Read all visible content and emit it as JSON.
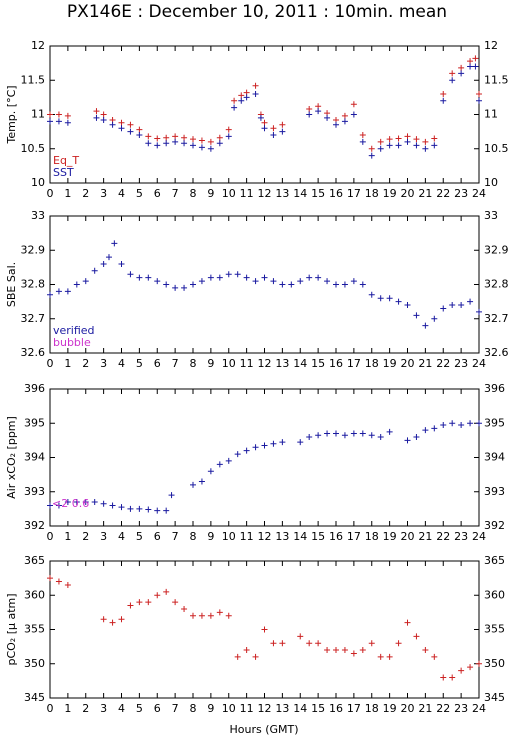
{
  "title": "PX146E : December 10, 2011 : 10min. mean",
  "xlabel": "Hours (GMT)",
  "chart_data": [
    {
      "type": "scatter",
      "ylabel": "Temp. [°C]",
      "legend": "lower left",
      "xlim": [
        0,
        24
      ],
      "xticks": [
        0,
        1,
        2,
        3,
        4,
        5,
        6,
        7,
        8,
        9,
        10,
        11,
        12,
        13,
        14,
        15,
        16,
        17,
        18,
        19,
        20,
        21,
        22,
        23,
        24
      ],
      "ylim": [
        10,
        12
      ],
      "yticks": [
        10,
        10.5,
        11,
        11.5,
        12
      ],
      "series": [
        {
          "name": "Eq_T",
          "color": "#cc2222",
          "x": [
            0,
            0.5,
            1,
            2.6,
            3,
            3.5,
            4,
            4.5,
            5,
            5.5,
            6,
            6.5,
            7,
            7.5,
            8,
            8.5,
            9,
            9.5,
            10,
            10.3,
            10.7,
            11,
            11.5,
            11.8,
            12,
            12.5,
            13,
            14.5,
            15,
            15.5,
            16,
            16.5,
            17,
            17.5,
            18,
            18.5,
            19,
            19.5,
            20,
            20.5,
            21,
            21.5,
            22,
            22.5,
            23,
            23.5,
            23.8,
            24
          ],
          "values": [
            11.0,
            11.0,
            10.98,
            11.05,
            11.0,
            10.92,
            10.88,
            10.85,
            10.78,
            10.68,
            10.65,
            10.66,
            10.68,
            10.66,
            10.64,
            10.62,
            10.6,
            10.66,
            10.78,
            11.2,
            11.28,
            11.32,
            11.42,
            11.0,
            10.88,
            10.8,
            10.85,
            11.08,
            11.12,
            11.02,
            10.92,
            10.98,
            11.15,
            10.7,
            10.5,
            10.6,
            10.64,
            10.65,
            10.68,
            10.64,
            10.6,
            10.65,
            11.3,
            11.6,
            11.68,
            11.78,
            11.82,
            11.3
          ]
        },
        {
          "name": "SST",
          "color": "#1a1aa0",
          "x": [
            0,
            0.5,
            1,
            2.6,
            3,
            3.5,
            4,
            4.5,
            5,
            5.5,
            6,
            6.5,
            7,
            7.5,
            8,
            8.5,
            9,
            9.5,
            10,
            10.3,
            10.7,
            11,
            11.5,
            11.8,
            12,
            12.5,
            13,
            14.5,
            15,
            15.5,
            16,
            16.5,
            17,
            17.5,
            18,
            18.5,
            19,
            19.5,
            20,
            20.5,
            21,
            21.5,
            22,
            22.5,
            23,
            23.5,
            23.8,
            24
          ],
          "values": [
            10.9,
            10.9,
            10.88,
            10.95,
            10.92,
            10.85,
            10.8,
            10.75,
            10.7,
            10.58,
            10.55,
            10.58,
            10.6,
            10.58,
            10.55,
            10.52,
            10.5,
            10.58,
            10.68,
            11.1,
            11.2,
            11.25,
            11.3,
            10.95,
            10.8,
            10.7,
            10.75,
            11.0,
            11.05,
            10.95,
            10.85,
            10.9,
            11.0,
            10.6,
            10.4,
            10.5,
            10.55,
            10.55,
            10.6,
            10.55,
            10.5,
            10.55,
            11.2,
            11.5,
            11.6,
            11.7,
            11.7,
            11.2
          ]
        }
      ]
    },
    {
      "type": "scatter",
      "ylabel": "SBE Sal.",
      "legend": "lower left",
      "xlim": [
        0,
        24
      ],
      "xticks": [
        0,
        1,
        2,
        3,
        4,
        5,
        6,
        7,
        8,
        9,
        10,
        11,
        12,
        13,
        14,
        15,
        16,
        17,
        18,
        19,
        20,
        21,
        22,
        23,
        24
      ],
      "ylim": [
        32.6,
        33
      ],
      "yticks": [
        32.6,
        32.7,
        32.8,
        32.9,
        33
      ],
      "series": [
        {
          "name": "verified",
          "color": "#1a1aa0",
          "x": [
            0,
            0.5,
            1,
            1.5,
            2,
            2.5,
            3,
            3.3,
            3.6,
            4,
            4.5,
            5,
            5.5,
            6,
            6.5,
            7,
            7.5,
            8,
            8.5,
            9,
            9.5,
            10,
            10.5,
            11,
            11.5,
            12,
            12.5,
            13,
            13.5,
            14,
            14.5,
            15,
            15.5,
            16,
            16.5,
            17,
            17.5,
            18,
            18.5,
            19,
            19.5,
            20,
            20.5,
            21,
            21.5,
            22,
            22.5,
            23,
            23.5,
            24
          ],
          "values": [
            32.77,
            32.78,
            32.78,
            32.8,
            32.81,
            32.84,
            32.86,
            32.88,
            32.92,
            32.86,
            32.83,
            32.82,
            32.82,
            32.81,
            32.8,
            32.79,
            32.79,
            32.8,
            32.81,
            32.82,
            32.82,
            32.83,
            32.83,
            32.82,
            32.81,
            32.82,
            32.81,
            32.8,
            32.8,
            32.81,
            32.82,
            32.82,
            32.81,
            32.8,
            32.8,
            32.81,
            32.8,
            32.77,
            32.76,
            32.76,
            32.75,
            32.74,
            32.71,
            32.68,
            32.7,
            32.73,
            32.74,
            32.74,
            32.75,
            32.72
          ]
        },
        {
          "name": "bubble",
          "color": "#cc33cc",
          "x": [],
          "values": []
        }
      ]
    },
    {
      "type": "scatter",
      "ylabel": "Air xCO₂ [ppm]",
      "annotation": "<2 0.6",
      "annotation_color": "#cc33cc",
      "xlim": [
        0,
        24
      ],
      "xticks": [
        0,
        1,
        2,
        3,
        4,
        5,
        6,
        7,
        8,
        9,
        10,
        11,
        12,
        13,
        14,
        15,
        16,
        17,
        18,
        19,
        20,
        21,
        22,
        23,
        24
      ],
      "ylim": [
        392,
        396
      ],
      "yticks": [
        392,
        393,
        394,
        395,
        396
      ],
      "series": [
        {
          "color": "#1a1aa0",
          "x": [
            0,
            0.5,
            1,
            1.5,
            2,
            2.5,
            3,
            3.5,
            4,
            4.5,
            5,
            5.5,
            6,
            6.5,
            6.8,
            8,
            8.5,
            9,
            9.5,
            10,
            10.5,
            11,
            11.5,
            12,
            12.5,
            13,
            14,
            14.5,
            15,
            15.5,
            16,
            16.5,
            17,
            17.5,
            18,
            18.5,
            19,
            20,
            20.5,
            21,
            21.5,
            22,
            22.5,
            23,
            23.5,
            24
          ],
          "values": [
            392.6,
            392.6,
            392.7,
            392.7,
            392.7,
            392.7,
            392.65,
            392.6,
            392.55,
            392.5,
            392.5,
            392.48,
            392.45,
            392.45,
            392.9,
            393.2,
            393.3,
            393.6,
            393.8,
            393.9,
            394.1,
            394.2,
            394.3,
            394.35,
            394.4,
            394.45,
            394.45,
            394.6,
            394.65,
            394.7,
            394.7,
            394.65,
            394.7,
            394.7,
            394.65,
            394.6,
            394.75,
            394.5,
            394.6,
            394.8,
            394.85,
            394.95,
            395.0,
            394.95,
            395.0,
            395.0
          ]
        }
      ]
    },
    {
      "type": "scatter",
      "ylabel": "pCO₂ [μ atm]",
      "xlim": [
        0,
        24
      ],
      "xticks": [
        0,
        1,
        2,
        3,
        4,
        5,
        6,
        7,
        8,
        9,
        10,
        11,
        12,
        13,
        14,
        15,
        16,
        17,
        18,
        19,
        20,
        21,
        22,
        23,
        24
      ],
      "ylim": [
        345,
        365
      ],
      "yticks": [
        345,
        350,
        355,
        360,
        365
      ],
      "series": [
        {
          "color": "#cc2222",
          "x": [
            0,
            0.5,
            1,
            3,
            3.5,
            4,
            4.5,
            5,
            5.5,
            6,
            6.5,
            7,
            7.5,
            8,
            8.5,
            9,
            9.5,
            10,
            10.5,
            11,
            11.5,
            12,
            12.5,
            13,
            14,
            14.5,
            15,
            15.5,
            16,
            16.5,
            17,
            17.5,
            18,
            18.5,
            19,
            19.5,
            20,
            20.5,
            21,
            21.5,
            22,
            22.5,
            23,
            23.5,
            24
          ],
          "values": [
            362.5,
            362,
            361.5,
            356.5,
            356,
            356.5,
            358.5,
            359,
            359,
            360,
            360.5,
            359,
            358,
            357,
            357,
            357,
            357.5,
            357,
            351,
            352,
            351,
            355,
            353,
            353,
            354,
            353,
            353,
            352,
            352,
            352,
            351.5,
            352,
            353,
            351,
            351,
            353,
            356,
            354,
            352,
            351,
            348,
            348,
            349,
            349.5,
            350
          ]
        }
      ]
    }
  ]
}
